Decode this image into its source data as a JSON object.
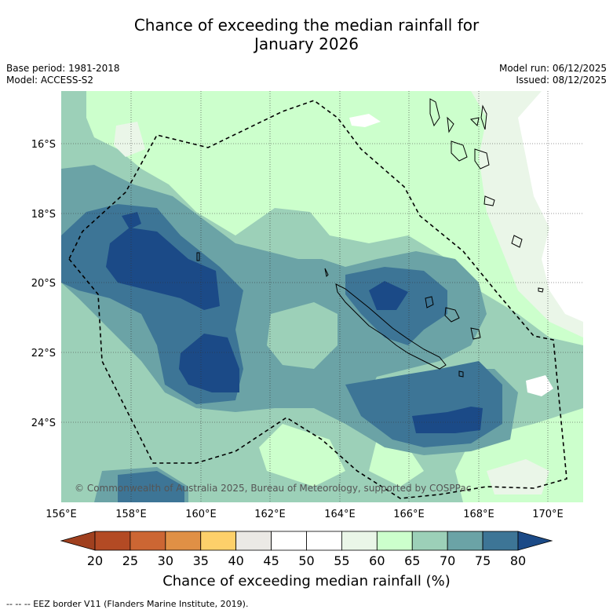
{
  "title_line1": "Chance of exceeding the median rainfall for",
  "title_line2": "January 2026",
  "base_period": "Base period: 1981-2018",
  "model": "Model: ACCESS-S2",
  "model_run": "Model run: 06/12/2025",
  "issued": "Issued: 08/12/2025",
  "copyright": "© Commonwealth of Australia 2025, Bureau of Meteorology, supported by COSPPac",
  "lat_labels": [
    "16°S",
    "18°S",
    "20°S",
    "22°S",
    "24°S"
  ],
  "lon_labels": [
    "156°E",
    "158°E",
    "160°E",
    "162°E",
    "164°E",
    "166°E",
    "168°E",
    "170°E"
  ],
  "colorbar": {
    "label": "Chance of exceeding median rainfall (%)",
    "ticks": [
      "20",
      "25",
      "30",
      "35",
      "40",
      "45",
      "50",
      "55",
      "60",
      "65",
      "70",
      "75",
      "80"
    ],
    "colors": [
      "#a0401f",
      "#b34a24",
      "#cc6633",
      "#e09045",
      "#fdd06a",
      "#ebe9e5",
      "#ffffff",
      "#ffffff",
      "#eaf6e8",
      "#ccffcc",
      "#9cd0b8",
      "#6ba3a6",
      "#3d7596",
      "#1b4a87"
    ]
  },
  "legend_footer": "-- -- -- EEZ border V11 (Flanders Marine Institute, 2019)."
}
